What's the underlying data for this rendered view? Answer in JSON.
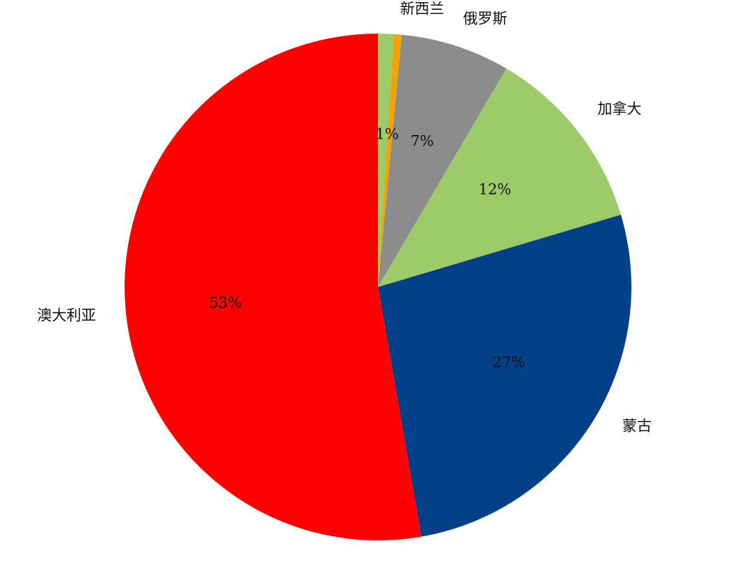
{
  "chart_data": {
    "type": "pie",
    "title": "",
    "start_angle": "12 o'clock",
    "direction": "clockwise",
    "slices": [
      {
        "label": "新西兰",
        "value": 1,
        "value_label": "1%",
        "color": "#9ECB6A"
      },
      {
        "label": "",
        "value": 0.5,
        "value_label": "",
        "color": "#F0A500"
      },
      {
        "label": "俄罗斯",
        "value": 7,
        "value_label": "7%",
        "color": "#8C8C8C"
      },
      {
        "label": "加拿大",
        "value": 12,
        "value_label": "12%",
        "color": "#9ECB6A"
      },
      {
        "label": "蒙古",
        "value": 27,
        "value_label": "27%",
        "color": "#034087"
      },
      {
        "label": "澳大利亚",
        "value": 53,
        "value_label": "53%",
        "color": "#FF0000"
      }
    ]
  }
}
